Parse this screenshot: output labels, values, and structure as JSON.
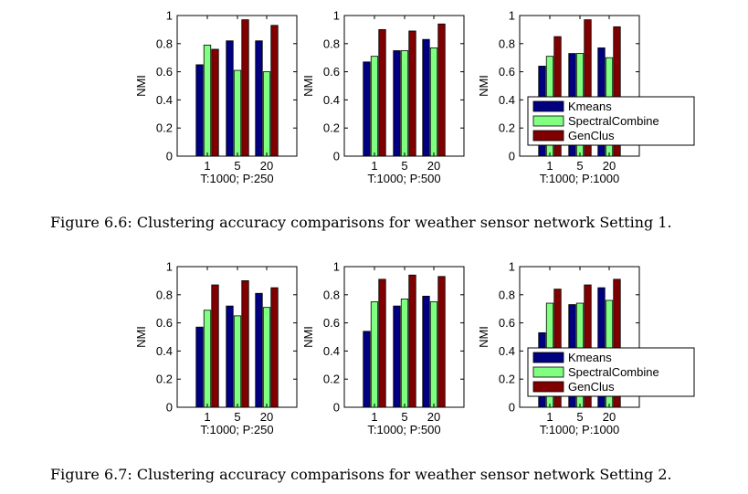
{
  "colors": {
    "Kmeans": "#000080",
    "SpectralCombine": "#80ff80",
    "GenClus": "#800000"
  },
  "figures": [
    {
      "caption": "Figure 6.6: Clustering accuracy comparisons for weather sensor network Setting 1."
    },
    {
      "caption": "Figure 6.7: Clustering accuracy comparisons for weather sensor network Setting 2."
    }
  ],
  "chart_data": [
    {
      "type": "bar",
      "figure": 0,
      "xlabel": "T:1000; P:250",
      "ylabel": "NMI",
      "categories": [
        "1",
        "5",
        "20"
      ],
      "ylim": [
        0,
        1
      ],
      "yticks": [
        "0",
        "0.2",
        "0.4",
        "0.6",
        "0.8",
        "1"
      ],
      "series": [
        {
          "name": "Kmeans",
          "values": [
            0.65,
            0.82,
            0.82
          ]
        },
        {
          "name": "SpectralCombine",
          "values": [
            0.79,
            0.61,
            0.6
          ]
        },
        {
          "name": "GenClus",
          "values": [
            0.76,
            0.97,
            0.93
          ]
        }
      ],
      "legend": false
    },
    {
      "type": "bar",
      "figure": 0,
      "xlabel": "T:1000; P:500",
      "ylabel": "NMI",
      "categories": [
        "1",
        "5",
        "20"
      ],
      "ylim": [
        0,
        1
      ],
      "yticks": [
        "0",
        "0.2",
        "0.4",
        "0.6",
        "0.8",
        "1"
      ],
      "series": [
        {
          "name": "Kmeans",
          "values": [
            0.67,
            0.75,
            0.83
          ]
        },
        {
          "name": "SpectralCombine",
          "values": [
            0.71,
            0.75,
            0.77
          ]
        },
        {
          "name": "GenClus",
          "values": [
            0.9,
            0.89,
            0.94
          ]
        }
      ],
      "legend": false
    },
    {
      "type": "bar",
      "figure": 0,
      "xlabel": "T:1000; P:1000",
      "ylabel": "NMI",
      "categories": [
        "1",
        "5",
        "20"
      ],
      "ylim": [
        0,
        1
      ],
      "yticks": [
        "0",
        "0.2",
        "0.4",
        "0.6",
        "0.8",
        "1"
      ],
      "series": [
        {
          "name": "Kmeans",
          "values": [
            0.64,
            0.73,
            0.77
          ]
        },
        {
          "name": "SpectralCombine",
          "values": [
            0.71,
            0.73,
            0.7
          ]
        },
        {
          "name": "GenClus",
          "values": [
            0.85,
            0.97,
            0.92
          ]
        }
      ],
      "legend": true,
      "legend_position": "bottom-right"
    },
    {
      "type": "bar",
      "figure": 1,
      "xlabel": "T:1000; P:250",
      "ylabel": "NMI",
      "categories": [
        "1",
        "5",
        "20"
      ],
      "ylim": [
        0,
        1
      ],
      "yticks": [
        "0",
        "0.2",
        "0.4",
        "0.6",
        "0.8",
        "1"
      ],
      "series": [
        {
          "name": "Kmeans",
          "values": [
            0.57,
            0.72,
            0.81
          ]
        },
        {
          "name": "SpectralCombine",
          "values": [
            0.69,
            0.65,
            0.71
          ]
        },
        {
          "name": "GenClus",
          "values": [
            0.87,
            0.9,
            0.85
          ]
        }
      ],
      "legend": false
    },
    {
      "type": "bar",
      "figure": 1,
      "xlabel": "T:1000; P:500",
      "ylabel": "NMI",
      "categories": [
        "1",
        "5",
        "20"
      ],
      "ylim": [
        0,
        1
      ],
      "yticks": [
        "0",
        "0.2",
        "0.4",
        "0.6",
        "0.8",
        "1"
      ],
      "series": [
        {
          "name": "Kmeans",
          "values": [
            0.54,
            0.72,
            0.79
          ]
        },
        {
          "name": "SpectralCombine",
          "values": [
            0.75,
            0.77,
            0.75
          ]
        },
        {
          "name": "GenClus",
          "values": [
            0.91,
            0.94,
            0.93
          ]
        }
      ],
      "legend": false
    },
    {
      "type": "bar",
      "figure": 1,
      "xlabel": "T:1000; P:1000",
      "ylabel": "NMI",
      "categories": [
        "1",
        "5",
        "20"
      ],
      "ylim": [
        0,
        1
      ],
      "yticks": [
        "0",
        "0.2",
        "0.4",
        "0.6",
        "0.8",
        "1"
      ],
      "series": [
        {
          "name": "Kmeans",
          "values": [
            0.53,
            0.73,
            0.85
          ]
        },
        {
          "name": "SpectralCombine",
          "values": [
            0.74,
            0.74,
            0.76
          ]
        },
        {
          "name": "GenClus",
          "values": [
            0.84,
            0.87,
            0.91
          ]
        }
      ],
      "legend": true,
      "legend_position": "bottom-right"
    }
  ]
}
